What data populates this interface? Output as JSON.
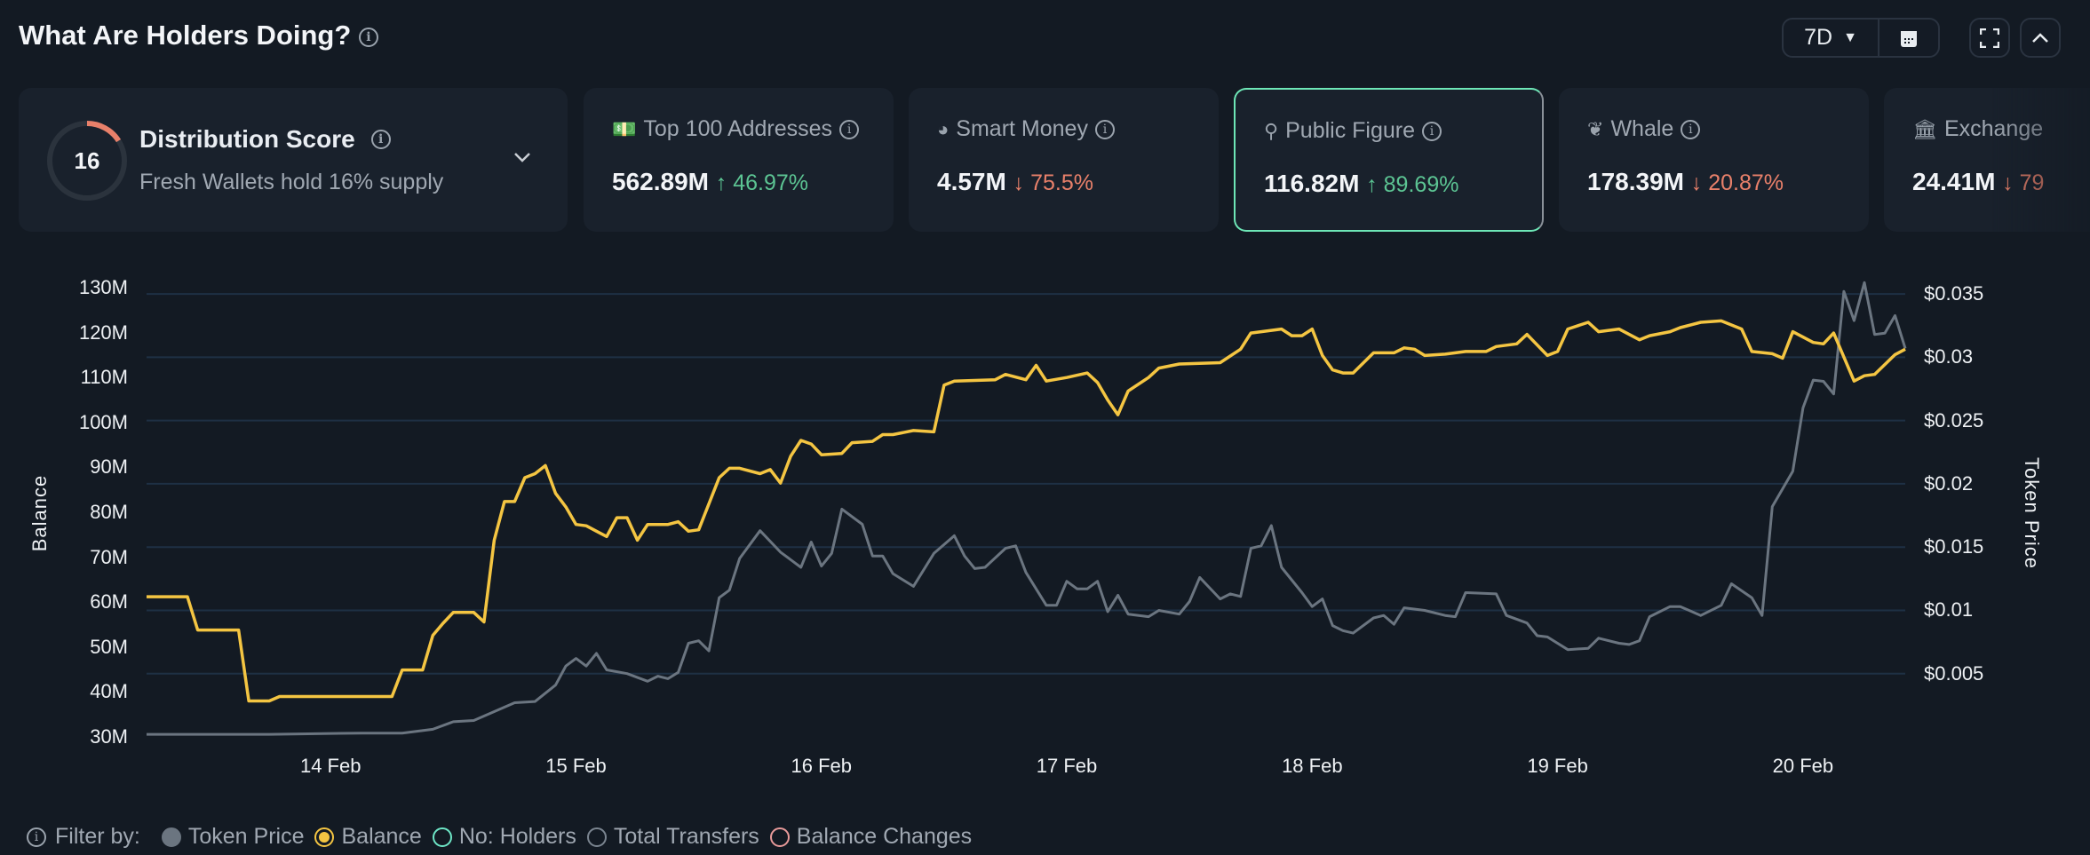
{
  "header": {
    "title": "What Are Holders Doing?",
    "timeframe": "7D",
    "icons": [
      "info-icon",
      "calendar-icon",
      "fullscreen-icon",
      "chevron-up-icon"
    ]
  },
  "distribution": {
    "label": "Distribution Score",
    "score": "16",
    "score_fraction": 0.16,
    "subtitle": "Fresh Wallets hold 16% supply",
    "ring_color": "#e8806a"
  },
  "cards": [
    {
      "label": "Top 100 Addresses",
      "value": "562.89M",
      "change": "46.97%",
      "direction": "up",
      "icon": "money-icon",
      "info": true
    },
    {
      "label": "Smart Money",
      "value": "4.57M",
      "change": "75.5%",
      "direction": "down",
      "icon": "sunglasses-icon",
      "info": true
    },
    {
      "label": "Public Figure",
      "value": "116.82M",
      "change": "89.69%",
      "direction": "up",
      "icon": "spotlight-icon",
      "info": true,
      "selected": true
    },
    {
      "label": "Whale",
      "value": "178.39M",
      "change": "20.87%",
      "direction": "down",
      "icon": "whale-icon",
      "info": true
    },
    {
      "label": "Exchange",
      "value": "24.41M",
      "change": "79",
      "direction": "down",
      "icon": "bank-icon",
      "info": false
    }
  ],
  "colors": {
    "up": "#5cc493",
    "down": "#e8806a",
    "balance": "#f4c542",
    "token_price": "#6b7580",
    "selected_border": "#6ee7b7"
  },
  "legend": {
    "label": "Filter by:",
    "items": [
      {
        "label": "Token Price",
        "color": "#6b7580",
        "state": "filled"
      },
      {
        "label": "Balance",
        "color": "#f4c542",
        "state": "selected"
      },
      {
        "label": "No: Holders",
        "color": "#6ee7c7",
        "state": "off"
      },
      {
        "label": "Total Transfers",
        "color": "#7b8590",
        "state": "off"
      },
      {
        "label": "Balance Changes",
        "color": "#e89a9a",
        "state": "off"
      }
    ]
  },
  "chart_data": {
    "type": "line",
    "xlabel": "",
    "ylabel": "Balance",
    "y2label": "Token Price",
    "x_ticks": [
      "14 Feb",
      "15 Feb",
      "16 Feb",
      "17 Feb",
      "18 Feb",
      "19 Feb",
      "20 Feb"
    ],
    "y_ticks": [
      "130M",
      "120M",
      "110M",
      "100M",
      "90M",
      "80M",
      "70M",
      "60M",
      "50M",
      "40M",
      "30M"
    ],
    "y2_ticks": [
      "$0.035",
      "$0.03",
      "$0.025",
      "$0.02",
      "$0.015",
      "$0.01",
      "$0.005"
    ],
    "ylim": [
      30,
      130
    ],
    "y2lim": [
      0,
      0.0355
    ],
    "grid": true,
    "series": [
      {
        "name": "Balance",
        "axis": "left",
        "unit": "M",
        "color": "#f4c542",
        "points": [
          [
            "13 Feb 06:00",
            61.2
          ],
          [
            "13 Feb 10:00",
            61.2
          ],
          [
            "13 Feb 11:00",
            53.8
          ],
          [
            "13 Feb 15:00",
            53.8
          ],
          [
            "13 Feb 16:00",
            38
          ],
          [
            "13 Feb 18:00",
            38
          ],
          [
            "13 Feb 19:00",
            39
          ],
          [
            "14 Feb 06:00",
            39
          ],
          [
            "14 Feb 07:00",
            44.9
          ],
          [
            "14 Feb 09:00",
            44.9
          ],
          [
            "14 Feb 10:00",
            52.6
          ],
          [
            "14 Feb 11:00",
            55.3
          ],
          [
            "14 Feb 12:00",
            57.7
          ],
          [
            "14 Feb 14:00",
            57.7
          ],
          [
            "14 Feb 15:00",
            55.6
          ],
          [
            "14 Feb 16:00",
            73.8
          ],
          [
            "14 Feb 17:00",
            82.4
          ],
          [
            "14 Feb 18:00",
            82.4
          ],
          [
            "14 Feb 19:00",
            87.7
          ],
          [
            "14 Feb 20:00",
            88.6
          ],
          [
            "14 Feb 21:00",
            90.4
          ],
          [
            "14 Feb 22:00",
            84.2
          ],
          [
            "14 Feb 23:00",
            81.2
          ],
          [
            "15 Feb 00:00",
            77.3
          ],
          [
            "15 Feb 01:00",
            77
          ],
          [
            "15 Feb 02:00",
            75.8
          ],
          [
            "15 Feb 03:00",
            74.6
          ],
          [
            "15 Feb 04:00",
            78.8
          ],
          [
            "15 Feb 05:00",
            78.8
          ],
          [
            "15 Feb 06:00",
            73.8
          ],
          [
            "15 Feb 07:00",
            77.3
          ],
          [
            "15 Feb 09:00",
            77.3
          ],
          [
            "15 Feb 10:00",
            77.9
          ],
          [
            "15 Feb 11:00",
            75.8
          ],
          [
            "15 Feb 12:00",
            76.1
          ],
          [
            "15 Feb 14:00",
            87.7
          ],
          [
            "15 Feb 15:00",
            89.8
          ],
          [
            "15 Feb 16:00",
            89.8
          ],
          [
            "15 Feb 18:00",
            88.6
          ],
          [
            "15 Feb 19:00",
            89.5
          ],
          [
            "15 Feb 20:00",
            86.5
          ],
          [
            "15 Feb 21:00",
            92.5
          ],
          [
            "15 Feb 22:00",
            96
          ],
          [
            "15 Feb 23:00",
            95.2
          ],
          [
            "16 Feb 00:00",
            92.8
          ],
          [
            "16 Feb 02:00",
            93.1
          ],
          [
            "16 Feb 03:00",
            95.5
          ],
          [
            "16 Feb 05:00",
            95.8
          ],
          [
            "16 Feb 06:00",
            97.3
          ],
          [
            "16 Feb 07:00",
            97.3
          ],
          [
            "16 Feb 09:00",
            98.2
          ],
          [
            "16 Feb 11:00",
            97.9
          ],
          [
            "16 Feb 12:00",
            108.3
          ],
          [
            "16 Feb 13:00",
            109.2
          ],
          [
            "16 Feb 17:00",
            109.5
          ],
          [
            "16 Feb 18:00",
            110.7
          ],
          [
            "16 Feb 20:00",
            109.5
          ],
          [
            "16 Feb 21:00",
            112.7
          ],
          [
            "16 Feb 22:00",
            109.2
          ],
          [
            "17 Feb 00:00",
            110
          ],
          [
            "17 Feb 02:00",
            111
          ],
          [
            "17 Feb 03:00",
            108.9
          ],
          [
            "17 Feb 04:00",
            105
          ],
          [
            "17 Feb 05:00",
            101.7
          ],
          [
            "17 Feb 06:00",
            107
          ],
          [
            "17 Feb 08:00",
            110
          ],
          [
            "17 Feb 09:00",
            112.1
          ],
          [
            "17 Feb 11:00",
            113
          ],
          [
            "17 Feb 15:00",
            113.3
          ],
          [
            "17 Feb 17:00",
            116.3
          ],
          [
            "17 Feb 18:00",
            119.9
          ],
          [
            "17 Feb 19:00",
            120.2
          ],
          [
            "17 Feb 21:00",
            120.8
          ],
          [
            "17 Feb 22:00",
            119.3
          ],
          [
            "17 Feb 23:00",
            119.3
          ],
          [
            "18 Feb 00:00",
            120.8
          ],
          [
            "18 Feb 01:00",
            114.9
          ],
          [
            "18 Feb 02:00",
            111.7
          ],
          [
            "18 Feb 03:00",
            111
          ],
          [
            "18 Feb 04:00",
            111
          ],
          [
            "18 Feb 06:00",
            115.5
          ],
          [
            "18 Feb 08:00",
            115.5
          ],
          [
            "18 Feb 09:00",
            116.6
          ],
          [
            "18 Feb 10:00",
            116.3
          ],
          [
            "18 Feb 11:00",
            114.9
          ],
          [
            "18 Feb 13:00",
            115.2
          ],
          [
            "18 Feb 15:00",
            115.8
          ],
          [
            "18 Feb 17:00",
            115.8
          ],
          [
            "18 Feb 18:00",
            116.9
          ],
          [
            "18 Feb 20:00",
            117.5
          ],
          [
            "18 Feb 21:00",
            119.6
          ],
          [
            "18 Feb 23:00",
            114.9
          ],
          [
            "19 Feb 00:00",
            115.8
          ],
          [
            "19 Feb 01:00",
            120.8
          ],
          [
            "19 Feb 03:00",
            122.3
          ],
          [
            "19 Feb 04:00",
            120.2
          ],
          [
            "19 Feb 06:00",
            120.8
          ],
          [
            "19 Feb 08:00",
            118.4
          ],
          [
            "19 Feb 09:00",
            119.3
          ],
          [
            "19 Feb 11:00",
            120.2
          ],
          [
            "19 Feb 12:00",
            121.1
          ],
          [
            "19 Feb 14:00",
            122.3
          ],
          [
            "19 Feb 16:00",
            122.6
          ],
          [
            "19 Feb 17:00",
            121.7
          ],
          [
            "19 Feb 18:00",
            120.8
          ],
          [
            "19 Feb 19:00",
            115.8
          ],
          [
            "19 Feb 21:00",
            115.3
          ],
          [
            "19 Feb 22:00",
            114.3
          ],
          [
            "19 Feb 23:00",
            120.2
          ],
          [
            "20 Feb 01:00",
            117.8
          ],
          [
            "20 Feb 02:00",
            117.5
          ],
          [
            "20 Feb 03:00",
            119.9
          ],
          [
            "20 Feb 05:00",
            109.2
          ],
          [
            "20 Feb 06:00",
            110.4
          ],
          [
            "20 Feb 07:00",
            110.7
          ],
          [
            "20 Feb 09:00",
            115.1
          ],
          [
            "20 Feb 10:00",
            116.3
          ]
        ]
      },
      {
        "name": "Token Price",
        "axis": "right",
        "unit": "$",
        "color": "#6b7580",
        "points": [
          [
            "13 Feb 06:00",
            0.0002
          ],
          [
            "13 Feb 18:00",
            0.0002
          ],
          [
            "14 Feb 03:00",
            0.0003
          ],
          [
            "14 Feb 07:00",
            0.0003
          ],
          [
            "14 Feb 10:00",
            0.0006
          ],
          [
            "14 Feb 12:00",
            0.0012
          ],
          [
            "14 Feb 14:00",
            0.0013
          ],
          [
            "14 Feb 16:00",
            0.002
          ],
          [
            "14 Feb 18:00",
            0.0027
          ],
          [
            "14 Feb 20:00",
            0.0028
          ],
          [
            "14 Feb 22:00",
            0.0041
          ],
          [
            "14 Feb 23:00",
            0.0056
          ],
          [
            "15 Feb 00:00",
            0.0062
          ],
          [
            "15 Feb 01:00",
            0.0056
          ],
          [
            "15 Feb 02:00",
            0.0066
          ],
          [
            "15 Feb 03:00",
            0.0053
          ],
          [
            "15 Feb 05:00",
            0.005
          ],
          [
            "15 Feb 07:00",
            0.0044
          ],
          [
            "15 Feb 08:00",
            0.0048
          ],
          [
            "15 Feb 09:00",
            0.0046
          ],
          [
            "15 Feb 10:00",
            0.0051
          ],
          [
            "15 Feb 11:00",
            0.0074
          ],
          [
            "15 Feb 12:00",
            0.0076
          ],
          [
            "15 Feb 13:00",
            0.0068
          ],
          [
            "15 Feb 14:00",
            0.011
          ],
          [
            "15 Feb 15:00",
            0.0116
          ],
          [
            "15 Feb 16:00",
            0.0141
          ],
          [
            "15 Feb 18:00",
            0.0163
          ],
          [
            "15 Feb 20:00",
            0.0146
          ],
          [
            "15 Feb 22:00",
            0.0134
          ],
          [
            "15 Feb 23:00",
            0.0154
          ],
          [
            "16 Feb 00:00",
            0.0135
          ],
          [
            "16 Feb 01:00",
            0.0145
          ],
          [
            "16 Feb 02:00",
            0.018
          ],
          [
            "16 Feb 04:00",
            0.0168
          ],
          [
            "16 Feb 05:00",
            0.0143
          ],
          [
            "16 Feb 06:00",
            0.0143
          ],
          [
            "16 Feb 07:00",
            0.0129
          ],
          [
            "16 Feb 09:00",
            0.0119
          ],
          [
            "16 Feb 11:00",
            0.0145
          ],
          [
            "16 Feb 13:00",
            0.0159
          ],
          [
            "16 Feb 14:00",
            0.0143
          ],
          [
            "16 Feb 15:00",
            0.0133
          ],
          [
            "16 Feb 16:00",
            0.0134
          ],
          [
            "16 Feb 18:00",
            0.0149
          ],
          [
            "16 Feb 19:00",
            0.0151
          ],
          [
            "16 Feb 20:00",
            0.013
          ],
          [
            "16 Feb 22:00",
            0.0104
          ],
          [
            "16 Feb 23:00",
            0.0104
          ],
          [
            "17 Feb 00:00",
            0.0123
          ],
          [
            "17 Feb 01:00",
            0.0117
          ],
          [
            "17 Feb 02:00",
            0.0117
          ],
          [
            "17 Feb 03:00",
            0.0123
          ],
          [
            "17 Feb 04:00",
            0.0099
          ],
          [
            "17 Feb 05:00",
            0.0112
          ],
          [
            "17 Feb 06:00",
            0.0097
          ],
          [
            "17 Feb 08:00",
            0.0095
          ],
          [
            "17 Feb 09:00",
            0.01
          ],
          [
            "17 Feb 11:00",
            0.0097
          ],
          [
            "17 Feb 12:00",
            0.0107
          ],
          [
            "17 Feb 13:00",
            0.0126
          ],
          [
            "17 Feb 15:00",
            0.0109
          ],
          [
            "17 Feb 16:00",
            0.0113
          ],
          [
            "17 Feb 17:00",
            0.0111
          ],
          [
            "17 Feb 18:00",
            0.0149
          ],
          [
            "17 Feb 19:00",
            0.0151
          ],
          [
            "17 Feb 20:00",
            0.0167
          ],
          [
            "17 Feb 21:00",
            0.0134
          ],
          [
            "17 Feb 23:00",
            0.0114
          ],
          [
            "18 Feb 00:00",
            0.0103
          ],
          [
            "18 Feb 01:00",
            0.0109
          ],
          [
            "18 Feb 02:00",
            0.0088
          ],
          [
            "18 Feb 03:00",
            0.0084
          ],
          [
            "18 Feb 04:00",
            0.0082
          ],
          [
            "18 Feb 06:00",
            0.0094
          ],
          [
            "18 Feb 07:00",
            0.0096
          ],
          [
            "18 Feb 08:00",
            0.0089
          ],
          [
            "18 Feb 09:00",
            0.0102
          ],
          [
            "18 Feb 11:00",
            0.01
          ],
          [
            "18 Feb 13:00",
            0.0096
          ],
          [
            "18 Feb 14:00",
            0.0095
          ],
          [
            "18 Feb 15:00",
            0.0114
          ],
          [
            "18 Feb 18:00",
            0.0113
          ],
          [
            "18 Feb 19:00",
            0.0096
          ],
          [
            "18 Feb 21:00",
            0.009
          ],
          [
            "18 Feb 22:00",
            0.008
          ],
          [
            "18 Feb 23:00",
            0.0079
          ],
          [
            "19 Feb 01:00",
            0.0069
          ],
          [
            "19 Feb 03:00",
            0.007
          ],
          [
            "19 Feb 04:00",
            0.0078
          ],
          [
            "19 Feb 06:00",
            0.0074
          ],
          [
            "19 Feb 07:00",
            0.0073
          ],
          [
            "19 Feb 08:00",
            0.0076
          ],
          [
            "19 Feb 09:00",
            0.0095
          ],
          [
            "19 Feb 11:00",
            0.0103
          ],
          [
            "19 Feb 12:00",
            0.0103
          ],
          [
            "19 Feb 14:00",
            0.0096
          ],
          [
            "19 Feb 16:00",
            0.0104
          ],
          [
            "19 Feb 17:00",
            0.0121
          ],
          [
            "19 Feb 19:00",
            0.011
          ],
          [
            "19 Feb 20:00",
            0.0096
          ],
          [
            "19 Feb 21:00",
            0.0182
          ],
          [
            "19 Feb 22:00",
            0.0196
          ],
          [
            "19 Feb 23:00",
            0.021
          ],
          [
            "20 Feb 00:00",
            0.026
          ],
          [
            "20 Feb 01:00",
            0.0282
          ],
          [
            "20 Feb 02:00",
            0.0281
          ],
          [
            "20 Feb 03:00",
            0.0271
          ],
          [
            "20 Feb 04:00",
            0.0352
          ],
          [
            "20 Feb 05:00",
            0.0329
          ],
          [
            "20 Feb 06:00",
            0.0359
          ],
          [
            "20 Feb 07:00",
            0.0318
          ],
          [
            "20 Feb 08:00",
            0.0319
          ],
          [
            "20 Feb 09:00",
            0.0333
          ],
          [
            "20 Feb 10:00",
            0.0307
          ]
        ]
      }
    ]
  }
}
